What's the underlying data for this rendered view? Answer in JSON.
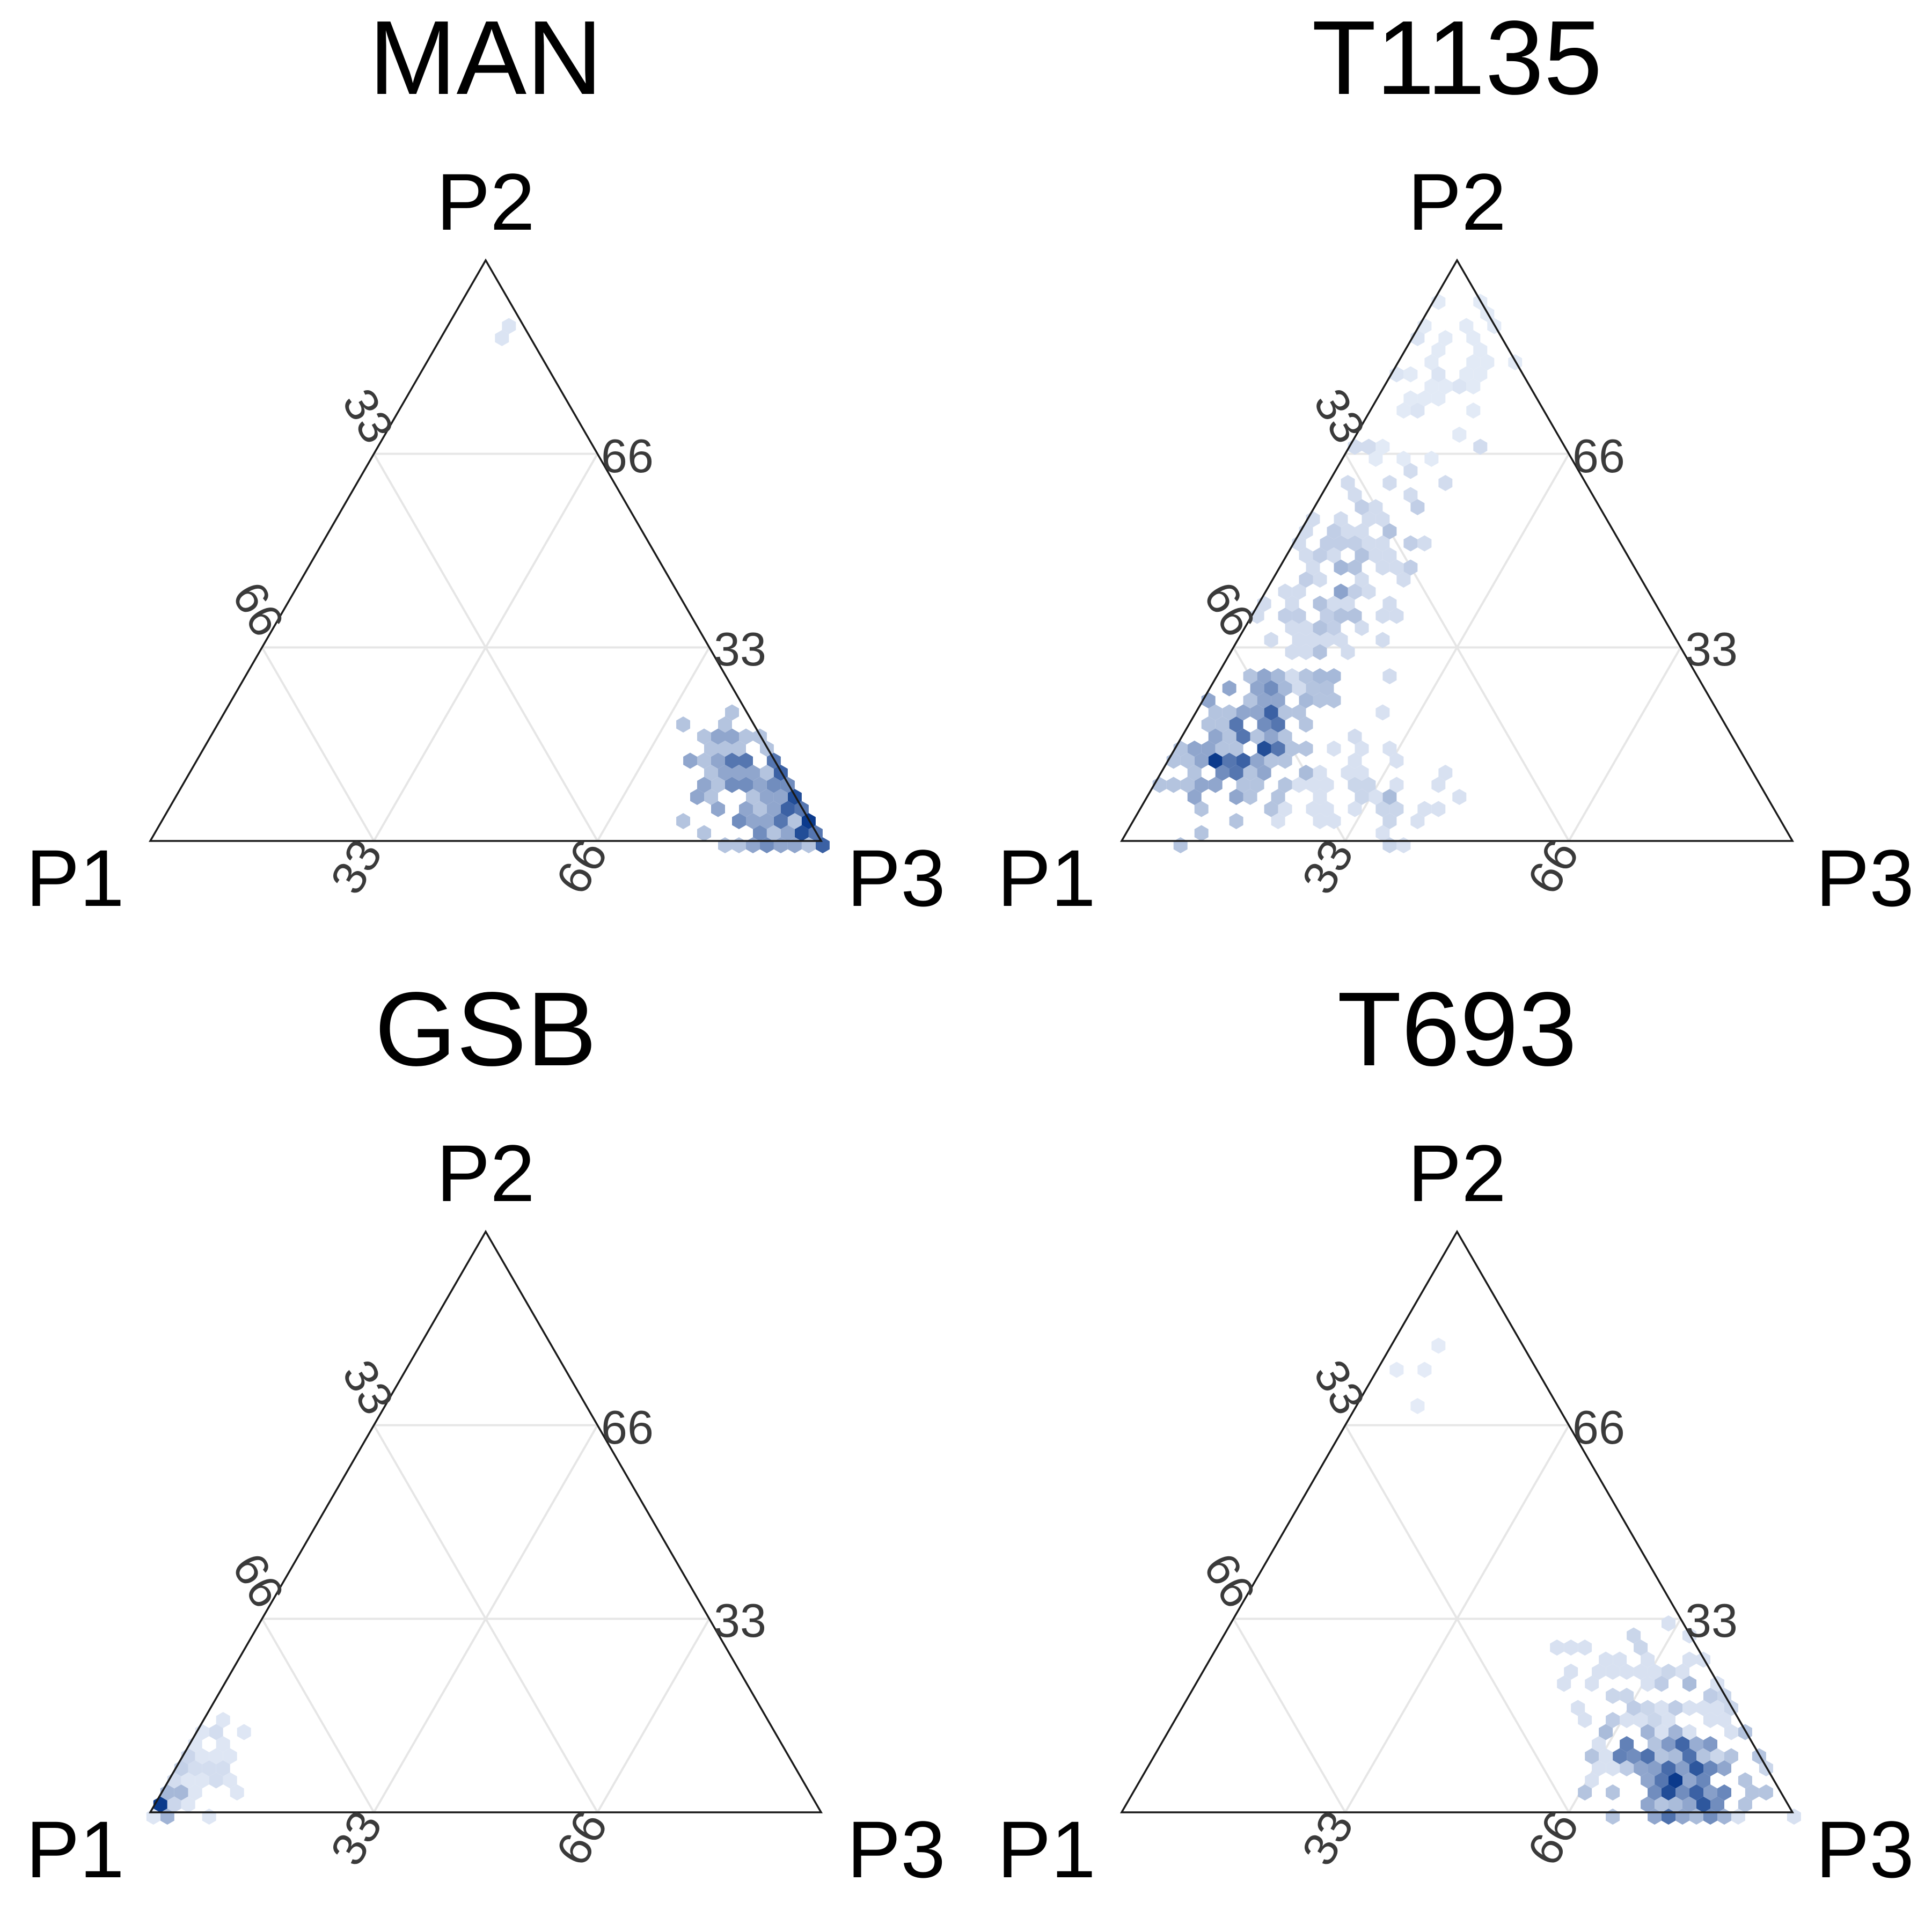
{
  "chart_data": [
    {
      "type": "ternary-hexbin",
      "title": "MAN",
      "vertices": {
        "left": "P1",
        "top": "P2",
        "right": "P3"
      },
      "ticks": [
        "33",
        "66"
      ],
      "grid": true,
      "color_scale": [
        "#eef3fc",
        "#0b3a8c"
      ],
      "density_clusters": [
        {
          "name": "main",
          "center": [
            6,
            8,
            86
          ],
          "spread": [
            6,
            6,
            7
          ],
          "weight": 1.0,
          "points": 120
        },
        {
          "name": "p3-corner",
          "center": [
            1,
            2,
            97
          ],
          "spread": [
            1.5,
            1.5,
            1.5
          ],
          "weight": 1.0,
          "points": 25
        },
        {
          "name": "top-strays",
          "center": [
            2,
            90,
            8
          ],
          "spread": [
            1,
            2,
            2
          ],
          "weight": 0.1,
          "points": 4
        }
      ]
    },
    {
      "type": "ternary-hexbin",
      "title": "T1135",
      "vertices": {
        "left": "P1",
        "top": "P2",
        "right": "P3"
      },
      "ticks": [
        "33",
        "66"
      ],
      "grid": true,
      "color_scale": [
        "#eef3fc",
        "#0b3a8c"
      ],
      "density_clusters": [
        {
          "name": "main",
          "center": [
            72,
            18,
            10
          ],
          "spread": [
            8,
            7,
            5
          ],
          "weight": 1.0,
          "points": 140
        },
        {
          "name": "ridge",
          "center": [
            45,
            45,
            10
          ],
          "spread": [
            13,
            13,
            5
          ],
          "weight": 0.35,
          "points": 130
        },
        {
          "name": "upper-scatter",
          "center": [
            12,
            80,
            8
          ],
          "spread": [
            8,
            9,
            5
          ],
          "weight": 0.1,
          "points": 40
        },
        {
          "name": "bottom-spread",
          "center": [
            60,
            8,
            32
          ],
          "spread": [
            10,
            5,
            9
          ],
          "weight": 0.25,
          "points": 50
        }
      ]
    },
    {
      "type": "ternary-hexbin",
      "title": "GSB",
      "vertices": {
        "left": "P1",
        "top": "P2",
        "right": "P3"
      },
      "ticks": [
        "33",
        "66"
      ],
      "grid": true,
      "color_scale": [
        "#eef3fc",
        "#0b3a8c"
      ],
      "density_clusters": [
        {
          "name": "p1-corner",
          "center": [
            98,
            1,
            1
          ],
          "spread": [
            1,
            1,
            1
          ],
          "weight": 1.0,
          "points": 8
        },
        {
          "name": "tail",
          "center": [
            88,
            7,
            5
          ],
          "spread": [
            5,
            5,
            4
          ],
          "weight": 0.12,
          "points": 40
        }
      ]
    },
    {
      "type": "ternary-hexbin",
      "title": "T693",
      "vertices": {
        "left": "P1",
        "top": "P2",
        "right": "P3"
      },
      "ticks": [
        "33",
        "66"
      ],
      "grid": true,
      "color_scale": [
        "#eef3fc",
        "#0b3a8c"
      ],
      "density_clusters": [
        {
          "name": "main",
          "center": [
            14,
            6,
            80
          ],
          "spread": [
            6,
            4,
            6
          ],
          "weight": 1.0,
          "points": 130
        },
        {
          "name": "halo",
          "center": [
            12,
            16,
            72
          ],
          "spread": [
            8,
            9,
            9
          ],
          "weight": 0.25,
          "points": 130
        },
        {
          "name": "top-strays",
          "center": [
            20,
            75,
            5
          ],
          "spread": [
            4,
            4,
            3
          ],
          "weight": 0.08,
          "points": 4
        }
      ]
    }
  ]
}
